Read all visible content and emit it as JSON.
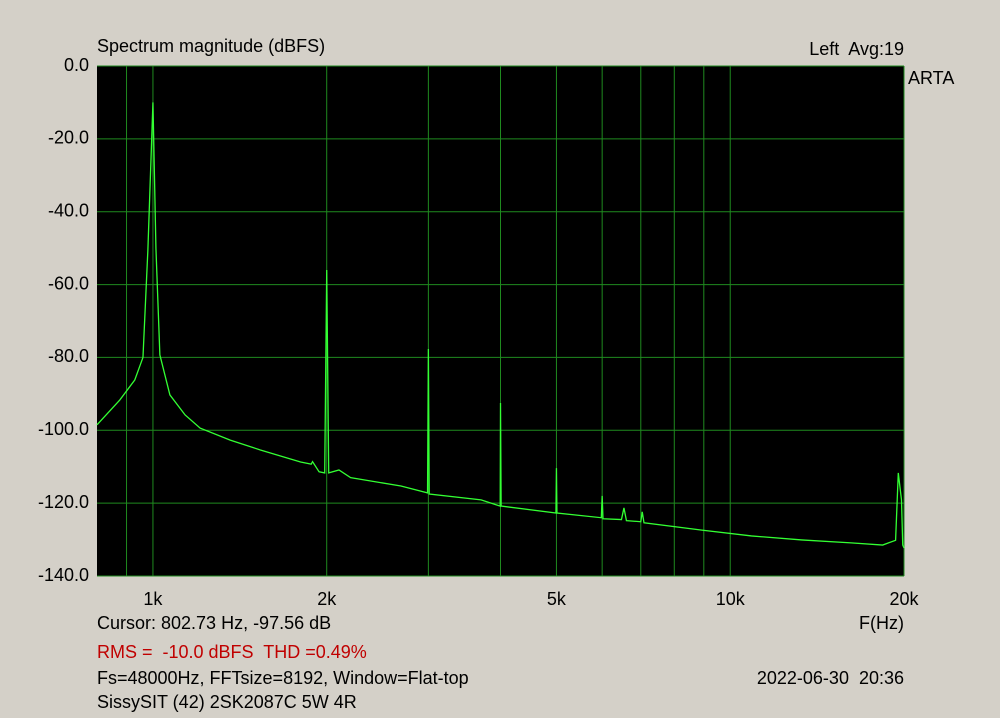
{
  "chart_data": {
    "type": "line",
    "title": "Spectrum magnitude (dBFS)",
    "channel_info": "Left  Avg:19",
    "brand": "ARTA",
    "x_label": "F(Hz)",
    "cursor": "Cursor: 802.73 Hz, -97.56 dB",
    "measurement": "RMS =  -10.0 dBFS  THD =0.49%",
    "settings": "Fs=48000Hz, FFTsize=8192, Window=Flat-top",
    "timestamp": "2022-06-30  20:36",
    "description": "SissySIT (42) 2SK2087C 5W 4R",
    "x_scale": "log",
    "grid": true,
    "xlim": [
      800,
      20000
    ],
    "ylim": [
      -140,
      0
    ],
    "xticks": [
      {
        "value": 1000,
        "label": "1k"
      },
      {
        "value": 2000,
        "label": "2k"
      },
      {
        "value": 5000,
        "label": "5k"
      },
      {
        "value": 10000,
        "label": "10k"
      },
      {
        "value": 20000,
        "label": "20k"
      }
    ],
    "xgrid": [
      900,
      3000,
      4000,
      6000,
      7000,
      8000,
      9000
    ],
    "yticks": [
      {
        "value": 0,
        "label": "0.0"
      },
      {
        "value": -20,
        "label": "-20.0"
      },
      {
        "value": -40,
        "label": "-40.0"
      },
      {
        "value": -60,
        "label": "-60.0"
      },
      {
        "value": -80,
        "label": "-80.0"
      },
      {
        "value": -100,
        "label": "-100.0"
      },
      {
        "value": -120,
        "label": "-120.0"
      },
      {
        "value": -140,
        "label": "-140.0"
      }
    ],
    "x": [
      800,
      876,
      930,
      961,
      980,
      1000,
      1012,
      1028,
      1070,
      1137,
      1207,
      1361,
      1535,
      1802,
      1880,
      1890,
      1940,
      1984,
      2000,
      2016,
      2100,
      2200,
      2689,
      2990,
      3000,
      3010,
      3702,
      3995,
      4000,
      4010,
      4990,
      5000,
      5010,
      5980,
      6000,
      6020,
      6480,
      6545,
      6610,
      7000,
      7040,
      7090,
      8930,
      10885,
      13300,
      16200,
      18370,
      19340,
      19550,
      19800,
      19900,
      20000
    ],
    "series": [
      {
        "color": "#33ff33",
        "values": [
          -98.5,
          -91.7,
          -86.2,
          -80,
          -50.5,
          -10,
          -50,
          -79.3,
          -90.3,
          -95.8,
          -99.4,
          -102.7,
          -105.4,
          -108.7,
          -109.3,
          -108.6,
          -111.4,
          -111.7,
          -56,
          -111.7,
          -110.9,
          -113,
          -115.3,
          -117.2,
          -77.7,
          -117.5,
          -119.1,
          -120.8,
          -92.5,
          -120.8,
          -122.7,
          -110.4,
          -122.7,
          -124,
          -118,
          -124.3,
          -124.5,
          -121.3,
          -124.8,
          -125.1,
          -122.4,
          -125.4,
          -127.4,
          -129,
          -130.1,
          -130.9,
          -131.5,
          -130.2,
          -111.7,
          -119.1,
          -131.5,
          -132.3
        ]
      }
    ]
  }
}
